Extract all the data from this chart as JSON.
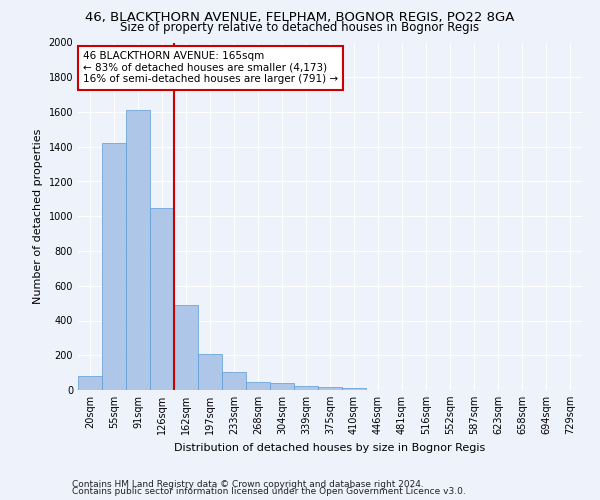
{
  "title1": "46, BLACKTHORN AVENUE, FELPHAM, BOGNOR REGIS, PO22 8GA",
  "title2": "Size of property relative to detached houses in Bognor Regis",
  "xlabel": "Distribution of detached houses by size in Bognor Regis",
  "ylabel": "Number of detached properties",
  "categories": [
    "20sqm",
    "55sqm",
    "91sqm",
    "126sqm",
    "162sqm",
    "197sqm",
    "233sqm",
    "268sqm",
    "304sqm",
    "339sqm",
    "375sqm",
    "410sqm",
    "446sqm",
    "481sqm",
    "516sqm",
    "552sqm",
    "587sqm",
    "623sqm",
    "658sqm",
    "694sqm",
    "729sqm"
  ],
  "values": [
    80,
    1420,
    1610,
    1050,
    490,
    205,
    105,
    48,
    38,
    25,
    18,
    12,
    0,
    0,
    0,
    0,
    0,
    0,
    0,
    0,
    0
  ],
  "bar_color": "#aec6e8",
  "bar_edge_color": "#5b9bd5",
  "vline_x": 3.5,
  "vline_color": "#cc0000",
  "annotation_text": "46 BLACKTHORN AVENUE: 165sqm\n← 83% of detached houses are smaller (4,173)\n16% of semi-detached houses are larger (791) →",
  "annotation_box_color": "white",
  "annotation_box_edge": "#cc0000",
  "ylim": [
    0,
    2000
  ],
  "yticks": [
    0,
    200,
    400,
    600,
    800,
    1000,
    1200,
    1400,
    1600,
    1800,
    2000
  ],
  "footer1": "Contains HM Land Registry data © Crown copyright and database right 2024.",
  "footer2": "Contains public sector information licensed under the Open Government Licence v3.0.",
  "background_color": "#eef2fb",
  "grid_color": "#ffffff",
  "title1_fontsize": 9.5,
  "title2_fontsize": 8.5,
  "xlabel_fontsize": 8,
  "ylabel_fontsize": 8,
  "tick_fontsize": 7,
  "annotation_fontsize": 7.5,
  "footer_fontsize": 6.5
}
